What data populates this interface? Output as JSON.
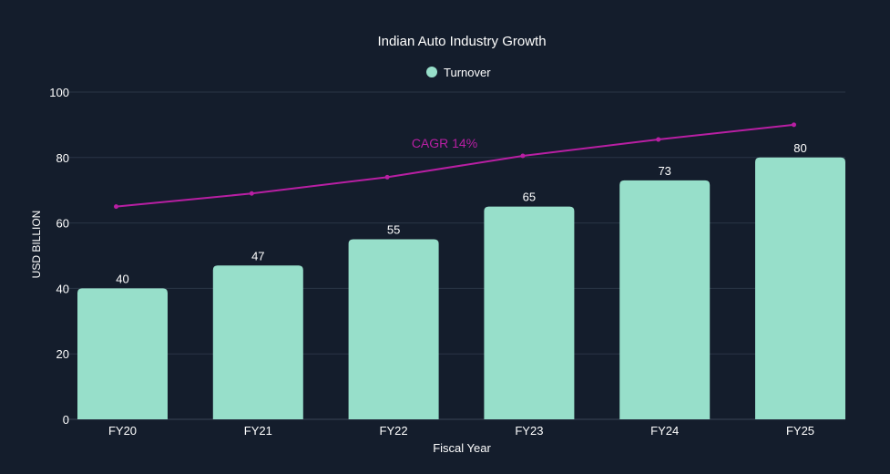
{
  "chart_data": {
    "type": "bar",
    "title": "Indian Auto Industry Growth",
    "xlabel": "Fiscal Year",
    "ylabel": "USD BILLION",
    "ylim": [
      0,
      100
    ],
    "yticks": [
      0,
      20,
      40,
      60,
      80,
      100
    ],
    "grid": true,
    "legend_position": "top-center",
    "categories": [
      "FY20",
      "FY21",
      "FY22",
      "FY23",
      "FY24",
      "FY25"
    ],
    "series": [
      {
        "name": "Turnover",
        "type": "bar",
        "values": [
          40,
          47,
          55,
          65,
          73,
          80
        ],
        "color": "#97dfca"
      },
      {
        "name": "CAGR trend",
        "type": "line",
        "values": [
          65,
          69,
          74,
          80.5,
          85.5,
          90
        ],
        "color": "#b81fa3"
      }
    ],
    "annotations": [
      {
        "text": "CAGR 14%",
        "color": "#b81fa3"
      }
    ],
    "colors": {
      "background": "#141d2c",
      "grid": "#2a3546",
      "text": "#ffffff"
    }
  }
}
